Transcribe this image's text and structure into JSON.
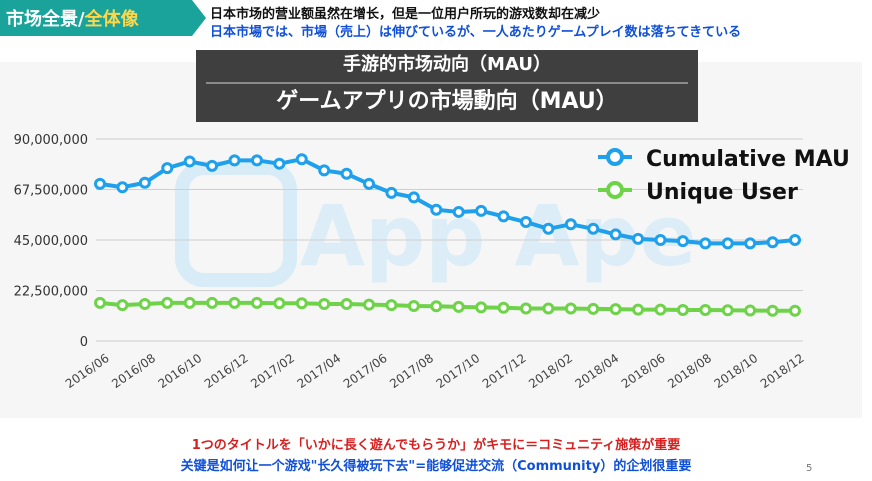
{
  "header": {
    "tag_prefix": "市场全景/",
    "tag_highlight": "全体像",
    "subtitle_cn": "日本市场的营业额虽然在增长，但是一位用户所玩的游戏数却在减少",
    "subtitle_jp": "日本市場では、市場（売上）は伸びているが、一人あたりゲームプレイ数は落ちてきている"
  },
  "title": {
    "cn": "手游的市场动向（MAU）",
    "jp": "ゲームアプリの市場動向（MAU）"
  },
  "watermark": "App Ape",
  "colors": {
    "accent": "#19a39a",
    "cumulative": "#1ea0ec",
    "unique": "#6fd34a",
    "jp_text": "#1050d8",
    "red_text": "#d81e1e"
  },
  "chart_data": {
    "type": "line",
    "x_tick_labels": [
      "2016/06",
      "2016/08",
      "2016/10",
      "2016/12",
      "2017/02",
      "2017/04",
      "2017/06",
      "2017/08",
      "2017/10",
      "2017/12",
      "2018/02",
      "2018/04",
      "2018/06",
      "2018/08",
      "2018/10",
      "2018/12"
    ],
    "y_tick_labels": [
      "90,000,000",
      "67,500,000",
      "45,000,000",
      "22,500,000",
      "0"
    ],
    "ylim": [
      0,
      90000000
    ],
    "legend_position": "top-right",
    "series": [
      {
        "name": "Cumulative MAU",
        "values": [
          70000000,
          68500000,
          70500000,
          77000000,
          80000000,
          78000000,
          80500000,
          80500000,
          79000000,
          81000000,
          76000000,
          74500000,
          70000000,
          66000000,
          64000000,
          58500000,
          57500000,
          58000000,
          55500000,
          53000000,
          50000000,
          52000000,
          50000000,
          47500000,
          45500000,
          45000000,
          44500000,
          43500000,
          43500000,
          43500000,
          44000000,
          45000000
        ]
      },
      {
        "name": "Unique User",
        "values": [
          17000000,
          16000000,
          16500000,
          17000000,
          17000000,
          17000000,
          17000000,
          17000000,
          16800000,
          16800000,
          16500000,
          16500000,
          16200000,
          16000000,
          15600000,
          15500000,
          15200000,
          15000000,
          14800000,
          14500000,
          14500000,
          14500000,
          14300000,
          14200000,
          14000000,
          14000000,
          13800000,
          13800000,
          13700000,
          13600000,
          13500000,
          13500000
        ]
      }
    ]
  },
  "footer": {
    "jp": "1つのタイトルを「いかに長く遊んでもらうか」がキモに＝コミュニティ施策が重要",
    "cn": "关键是如何让一个游戏\"长久得被玩下去\"=能够促进交流（Community）的企划很重要"
  },
  "page_number": "5"
}
